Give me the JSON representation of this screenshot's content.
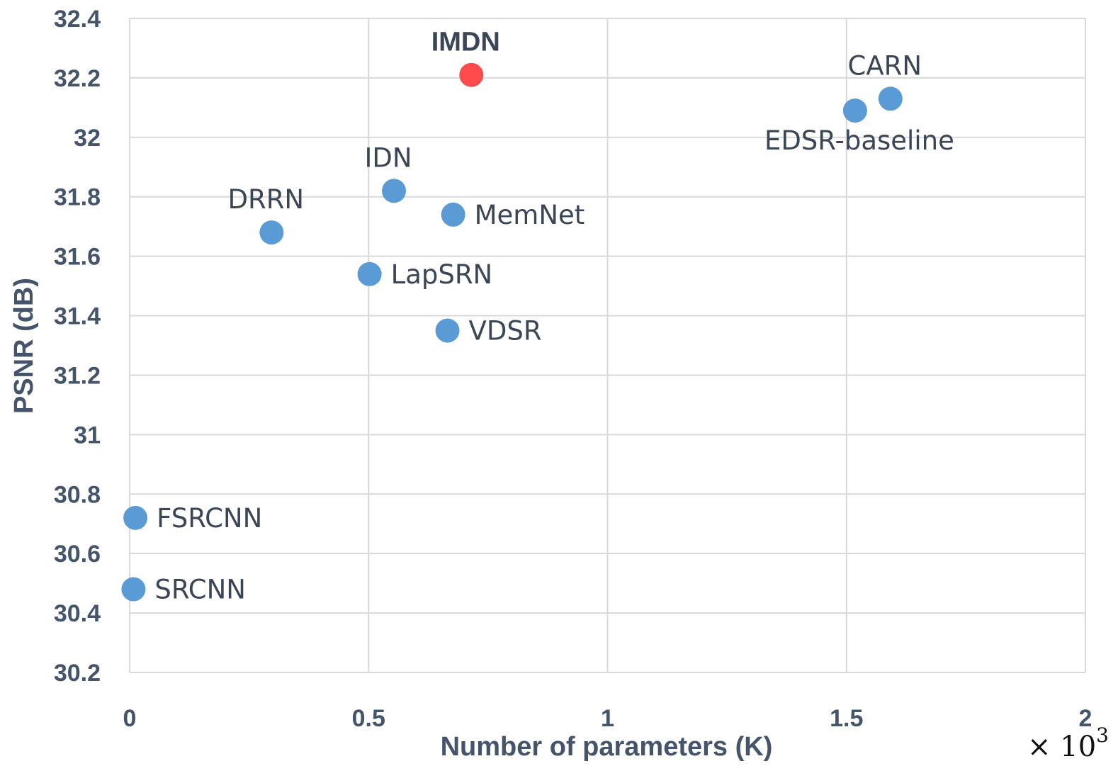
{
  "chart_data": {
    "type": "scatter",
    "xlabel": "Number of parameters (K)",
    "ylabel": "PSNR (dB)",
    "x_multiplier": {
      "base": "× 10",
      "exponent": "3"
    },
    "xlim": [
      0,
      2
    ],
    "ylim": [
      30.2,
      32.4
    ],
    "x_ticks": [
      0,
      0.5,
      1,
      1.5,
      2
    ],
    "x_tick_labels": [
      "0",
      "0.5",
      "1",
      "1.5",
      "2"
    ],
    "y_ticks": [
      30.2,
      30.4,
      30.6,
      30.8,
      31,
      31.2,
      31.4,
      31.6,
      31.8,
      32,
      32.2,
      32.4
    ],
    "y_tick_labels": [
      "30.2",
      "30.4",
      "30.6",
      "30.8",
      "31",
      "31.2",
      "31.4",
      "31.6",
      "31.8",
      "32",
      "32.2",
      "32.4"
    ],
    "grid": true,
    "colors": {
      "default": "#5b9bd5",
      "highlight": "#ff4b4b",
      "axis_text": "#44546a",
      "label_text": "#3a4556",
      "grid": "#d9d9d9"
    },
    "points": [
      {
        "label": "SRCNN",
        "x": 0.008,
        "y": 30.48,
        "label_pos": "right",
        "highlight": false
      },
      {
        "label": "FSRCNN",
        "x": 0.012,
        "y": 30.72,
        "label_pos": "right",
        "highlight": false
      },
      {
        "label": "DRRN",
        "x": 0.297,
        "y": 31.68,
        "label_pos": "above",
        "highlight": false
      },
      {
        "label": "LapSRN",
        "x": 0.502,
        "y": 31.54,
        "label_pos": "right",
        "highlight": false
      },
      {
        "label": "IDN",
        "x": 0.553,
        "y": 31.82,
        "label_pos": "above",
        "highlight": false
      },
      {
        "label": "VDSR",
        "x": 0.665,
        "y": 31.35,
        "label_pos": "right",
        "highlight": false
      },
      {
        "label": "MemNet",
        "x": 0.677,
        "y": 31.74,
        "label_pos": "right",
        "highlight": false
      },
      {
        "label": "IMDN",
        "x": 0.715,
        "y": 32.21,
        "label_pos": "above",
        "highlight": true
      },
      {
        "label": "EDSR-baseline",
        "x": 1.518,
        "y": 32.09,
        "label_pos": "below",
        "highlight": false
      },
      {
        "label": "CARN",
        "x": 1.592,
        "y": 32.13,
        "label_pos": "above",
        "highlight": false
      }
    ]
  }
}
